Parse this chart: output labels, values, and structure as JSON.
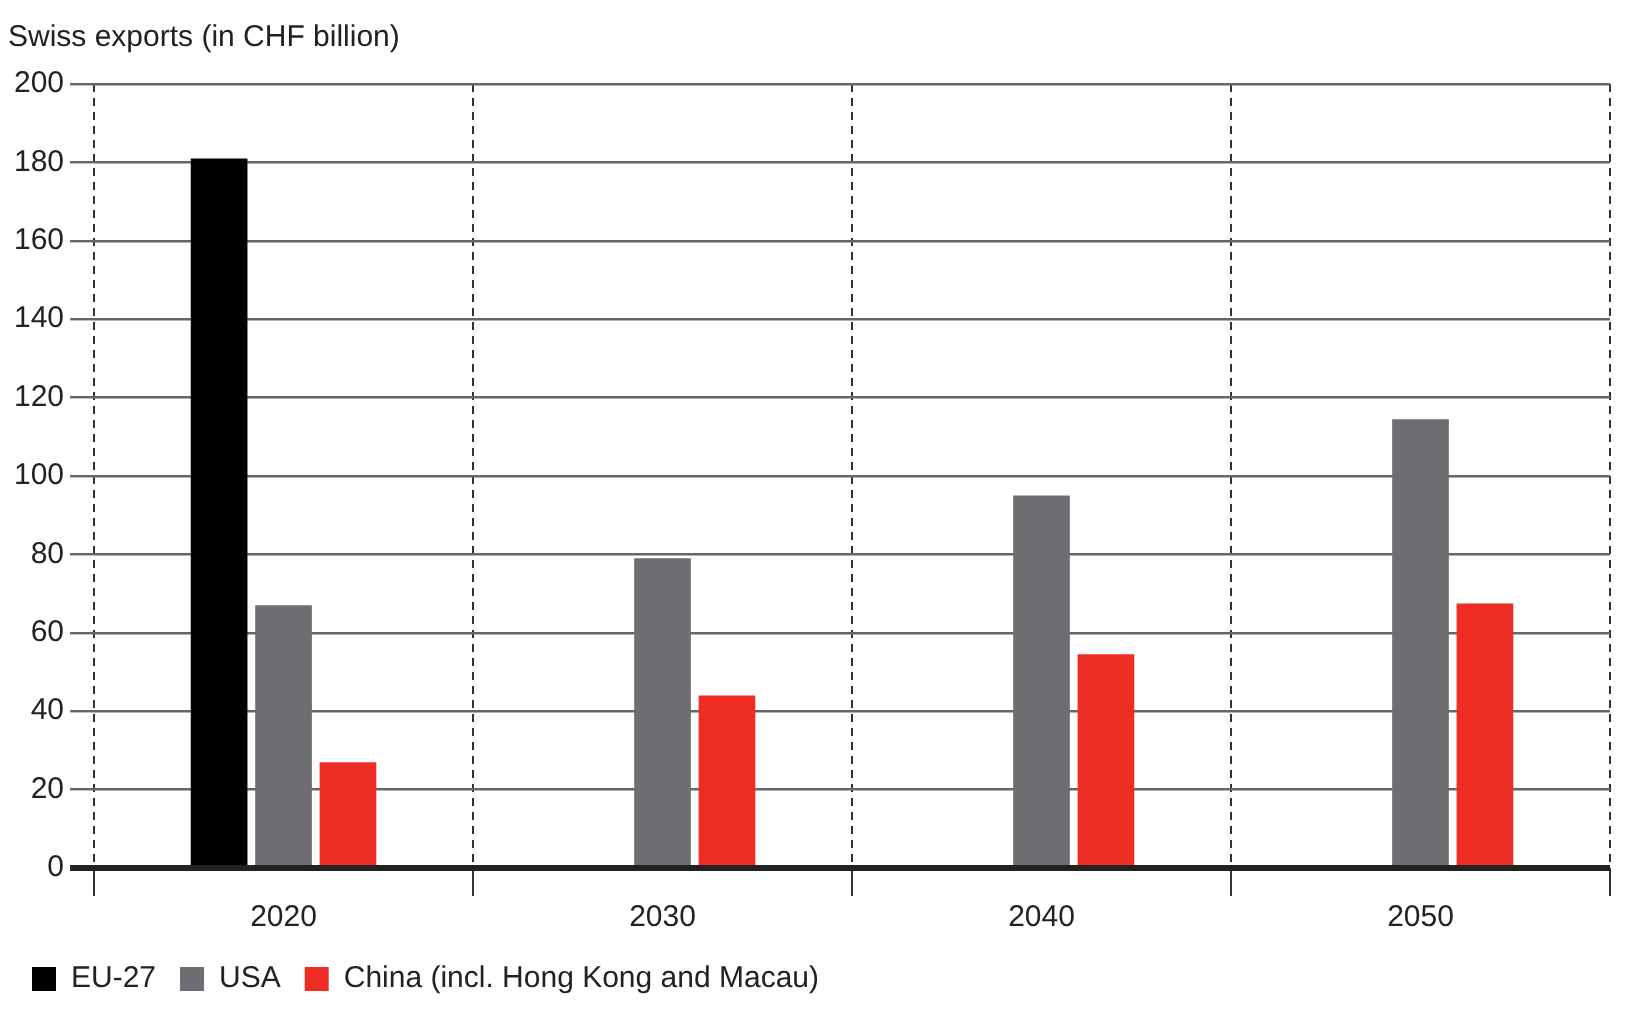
{
  "chart_data": {
    "type": "bar",
    "title": "Swiss exports (in CHF billion)",
    "categories": [
      "2020",
      "2030",
      "2040",
      "2050"
    ],
    "series": [
      {
        "name": "EU-27",
        "color": "#000000",
        "values": [
          181,
          null,
          null,
          null
        ]
      },
      {
        "name": "USA",
        "color": "#6d6e71",
        "values": [
          67,
          79,
          95,
          114.5
        ]
      },
      {
        "name": "China (incl. Hong Kong and Macau)",
        "color": "#ee2e24",
        "values": [
          27,
          44,
          54.5,
          67.5
        ]
      }
    ],
    "ylim": [
      0,
      200
    ],
    "yticks": [
      0,
      20,
      40,
      60,
      80,
      100,
      120,
      140,
      160,
      180,
      200
    ],
    "grid": true,
    "legend": "bottom left"
  }
}
